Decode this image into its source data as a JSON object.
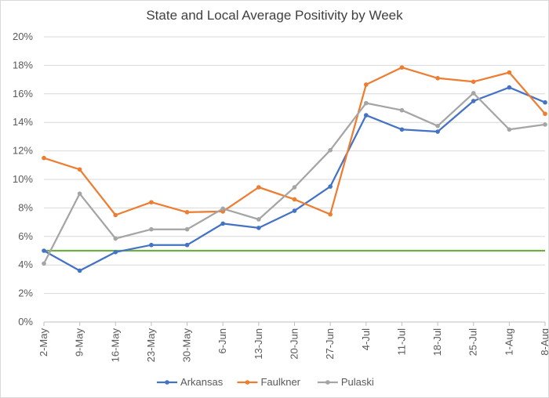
{
  "chart_data": {
    "type": "line",
    "title": "State and Local Average Positivity by Week",
    "xlabel": "",
    "ylabel": "",
    "ylim": [
      0,
      20
    ],
    "y_ticks": [
      "0%",
      "2%",
      "4%",
      "6%",
      "8%",
      "10%",
      "12%",
      "14%",
      "16%",
      "18%",
      "20%"
    ],
    "y_tick_values": [
      0,
      2,
      4,
      6,
      8,
      10,
      12,
      14,
      16,
      18,
      20
    ],
    "categories": [
      "2-May",
      "9-May",
      "16-May",
      "23-May",
      "30-May",
      "6-Jun",
      "13-Jun",
      "20-Jun",
      "27-Jun",
      "4-Jul",
      "11-Jul",
      "18-Jul",
      "25-Jul",
      "1-Aug",
      "8-Aug"
    ],
    "grid": true,
    "legend_position": "bottom",
    "series": [
      {
        "name": "Arkansas",
        "color": "#4472c4",
        "values": [
          5.0,
          3.6,
          4.9,
          5.4,
          5.4,
          6.9,
          6.6,
          7.8,
          9.5,
          14.5,
          13.5,
          13.35,
          15.5,
          16.45,
          15.4
        ]
      },
      {
        "name": "Faulkner",
        "color": "#ed7d31",
        "values": [
          11.5,
          10.7,
          7.5,
          8.4,
          7.7,
          7.75,
          9.45,
          8.6,
          7.55,
          16.65,
          17.85,
          17.1,
          16.85,
          17.5,
          14.6
        ]
      },
      {
        "name": "Pulaski",
        "color": "#a5a5a5",
        "values": [
          4.1,
          9.0,
          5.85,
          6.5,
          6.5,
          7.95,
          7.2,
          9.45,
          12.05,
          15.35,
          14.85,
          13.75,
          16.05,
          13.5,
          13.85
        ]
      }
    ],
    "reference_line": {
      "value": 5,
      "color": "#70ad47"
    }
  }
}
